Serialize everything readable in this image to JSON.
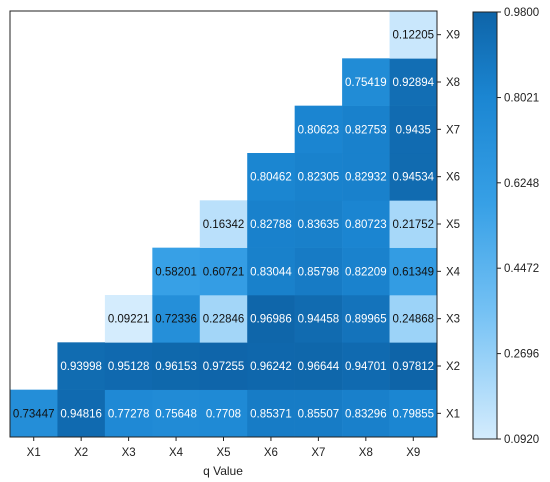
{
  "chart_data": {
    "type": "heatmap",
    "title": "",
    "xlabel": "q Value",
    "ylabel": "",
    "x_categories": [
      "X1",
      "X2",
      "X3",
      "X4",
      "X5",
      "X6",
      "X7",
      "X8",
      "X9"
    ],
    "y_categories": [
      "X1",
      "X2",
      "X3",
      "X4",
      "X5",
      "X6",
      "X7",
      "X8",
      "X9"
    ],
    "matrix": [
      [
        "0.73447",
        "0.94816",
        "0.77278",
        "0.75648",
        "0.7708",
        "0.85371",
        "0.85507",
        "0.83296",
        "0.79855"
      ],
      [
        null,
        "0.93998",
        "0.95128",
        "0.96153",
        "0.97255",
        "0.96242",
        "0.96644",
        "0.94701",
        "0.97812"
      ],
      [
        null,
        null,
        "0.09221",
        "0.72336",
        "0.22846",
        "0.96986",
        "0.94458",
        "0.89965",
        "0.24868"
      ],
      [
        null,
        null,
        null,
        "0.58201",
        "0.60721",
        "0.83044",
        "0.85798",
        "0.82209",
        "0.61349"
      ],
      [
        null,
        null,
        null,
        null,
        "0.16342",
        "0.82788",
        "0.83635",
        "0.80723",
        "0.21752"
      ],
      [
        null,
        null,
        null,
        null,
        null,
        "0.80462",
        "0.82305",
        "0.82932",
        "0.94534"
      ],
      [
        null,
        null,
        null,
        null,
        null,
        null,
        "0.80623",
        "0.82753",
        "0.9435"
      ],
      [
        null,
        null,
        null,
        null,
        null,
        null,
        null,
        "0.75419",
        "0.92894"
      ],
      [
        null,
        null,
        null,
        null,
        null,
        null,
        null,
        null,
        "0.12205"
      ]
    ],
    "colorbar": {
      "min": 0.092,
      "max": 0.98,
      "ticks": [
        "0.0920",
        "0.2696",
        "0.4472",
        "0.6248",
        "0.8021",
        "0.9800"
      ],
      "colormap": "Blues (light #d4ecfd to dark #0e64a8)"
    },
    "grid": false
  }
}
